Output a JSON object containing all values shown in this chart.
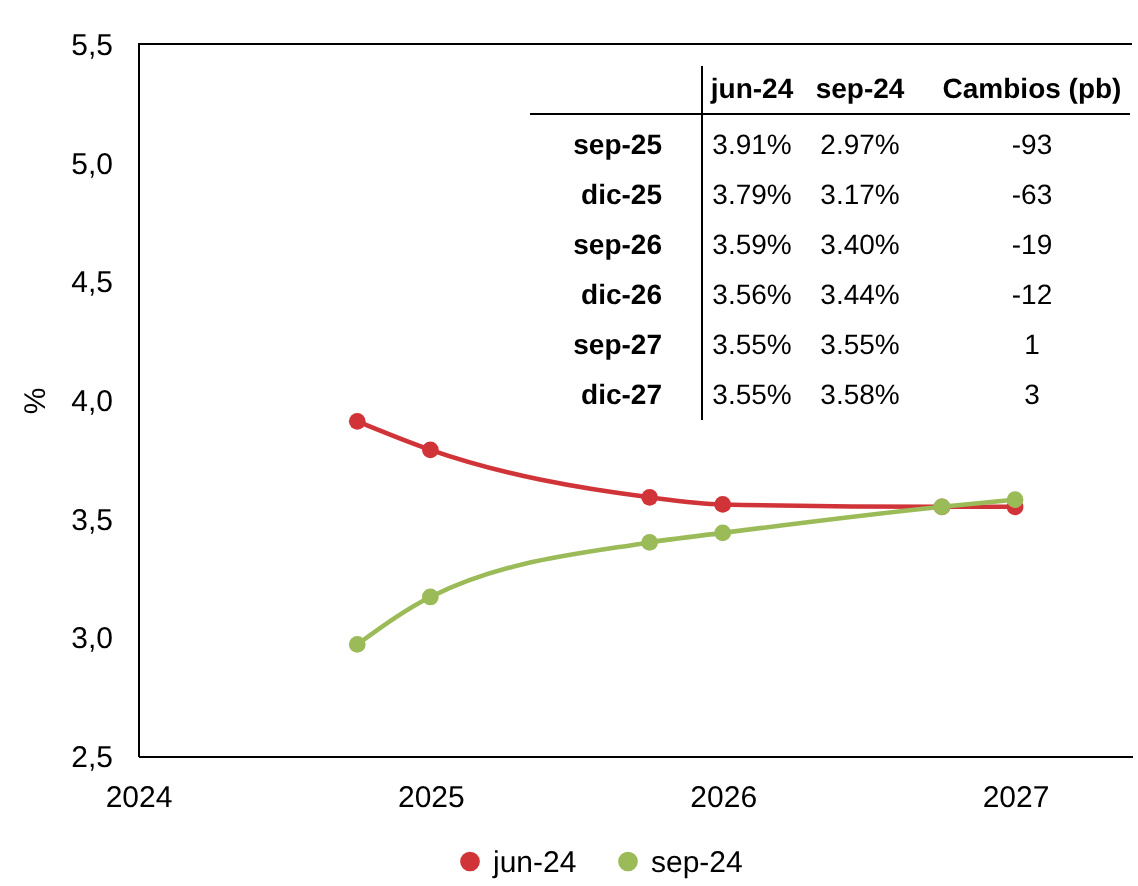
{
  "chart_data": [
    {
      "type": "line",
      "x": [
        2024.75,
        2025,
        2025.75,
        2026,
        2026.75,
        2027
      ],
      "xlim": [
        2024,
        2027.4
      ],
      "xticks": [
        2024,
        2025,
        2026,
        2027
      ],
      "ylim": [
        2.5,
        5.5
      ],
      "yticks": [
        {
          "value": 2.5,
          "label": "2,5"
        },
        {
          "value": 3,
          "label": "3,0"
        },
        {
          "value": 3.5,
          "label": "3,5"
        },
        {
          "value": 4,
          "label": "4,0"
        },
        {
          "value": 4.5,
          "label": "4,5"
        },
        {
          "value": 5,
          "label": "5,0"
        },
        {
          "value": 5.5,
          "label": "5,5"
        }
      ],
      "ylabel": "%",
      "series": [
        {
          "name": "jun-24",
          "color": "#d13438",
          "values": [
            3.91,
            3.79,
            3.59,
            3.56,
            3.55,
            3.55
          ]
        },
        {
          "name": "sep-24",
          "color": "#9bbb59",
          "values": [
            2.97,
            3.17,
            3.4,
            3.44,
            3.55,
            3.58
          ]
        }
      ],
      "legend": "bottom",
      "marker": "circle",
      "line_style": "solid"
    },
    {
      "type": "other",
      "categories": [
        "sep-25",
        "dic-25",
        "sep-26",
        "dic-26",
        "sep-27",
        "dic-27"
      ],
      "series": [
        {
          "name": "jun-24",
          "values": [
            3.91,
            3.79,
            3.59,
            3.56,
            3.55,
            3.55
          ],
          "value_labels": [
            "3.91%",
            "3.79%",
            "3.59%",
            "3.56%",
            "3.55%",
            "3.55%"
          ]
        },
        {
          "name": "sep-24",
          "values": [
            2.97,
            3.17,
            3.4,
            3.44,
            3.55,
            3.58
          ],
          "value_labels": [
            "2.97%",
            "3.17%",
            "3.40%",
            "3.44%",
            "3.55%",
            "3.58%"
          ]
        },
        {
          "name": "Cambios (pb)",
          "values": [
            -93,
            -63,
            -19,
            -12,
            1,
            3
          ]
        }
      ],
      "data_labels": true
    }
  ]
}
